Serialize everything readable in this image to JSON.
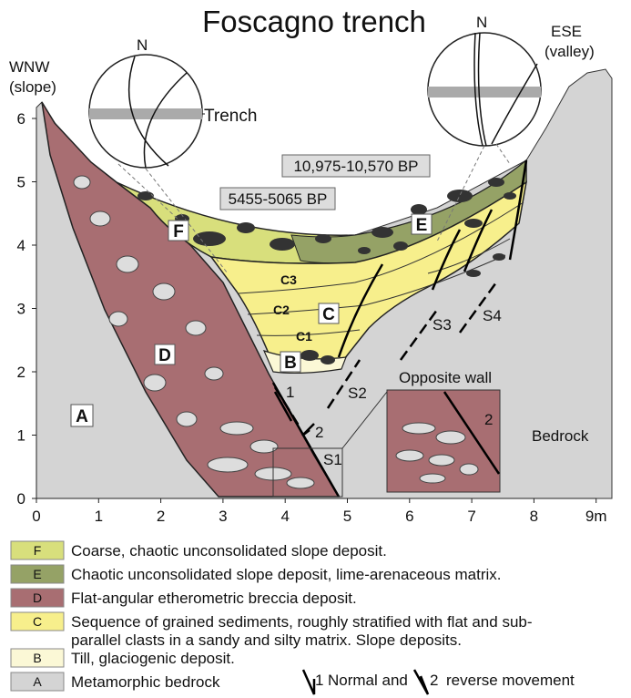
{
  "title": "Foscagno trench",
  "sides": {
    "left": [
      "WNW",
      "(slope)"
    ],
    "right": [
      "ESE",
      "(valley)"
    ]
  },
  "stereonets": [
    {
      "north": "N",
      "label": "Trench"
    },
    {
      "north": "N"
    }
  ],
  "dates": [
    "10,975-10,570 BP",
    "5455-5065 BP"
  ],
  "units": {
    "F": "F",
    "E": "E",
    "D": "D",
    "C": "C",
    "C1": "C1",
    "C2": "C2",
    "C3": "C3",
    "B": "B",
    "A": "A"
  },
  "faults": [
    "S1",
    "S2",
    "S3",
    "S4"
  ],
  "movement_marks": [
    "1",
    "2",
    "2"
  ],
  "opposite_wall": "Opposite wall",
  "bedrock": "Bedrock",
  "x_axis": {
    "ticks": [
      "0",
      "1",
      "2",
      "3",
      "4",
      "5",
      "6",
      "7",
      "8",
      "9m"
    ]
  },
  "y_axis": {
    "ticks": [
      "0",
      "1",
      "2",
      "3",
      "4",
      "5",
      "6"
    ]
  },
  "legend": [
    {
      "code": "F",
      "lines": [
        "Coarse, chaotic unconsolidated slope deposit."
      ]
    },
    {
      "code": "E",
      "lines": [
        "Chaotic unconsolidated slope deposit, lime-arenaceous matrix."
      ]
    },
    {
      "code": "D",
      "lines": [
        "Flat-angular etherometric breccia deposit."
      ]
    },
    {
      "code": "C",
      "lines": [
        "Sequence of grained sediments, roughly stratified with flat and sub-",
        "parallel clasts in a sandy and silty matrix. Slope deposits."
      ]
    },
    {
      "code": "B",
      "lines": [
        "Till, glaciogenic deposit."
      ]
    },
    {
      "code": "A",
      "lines": [
        "Metamorphic bedrock"
      ]
    }
  ],
  "movement_legend": {
    "normal": [
      "1",
      "Normal and"
    ],
    "reverse": [
      "2",
      "reverse movement"
    ]
  }
}
